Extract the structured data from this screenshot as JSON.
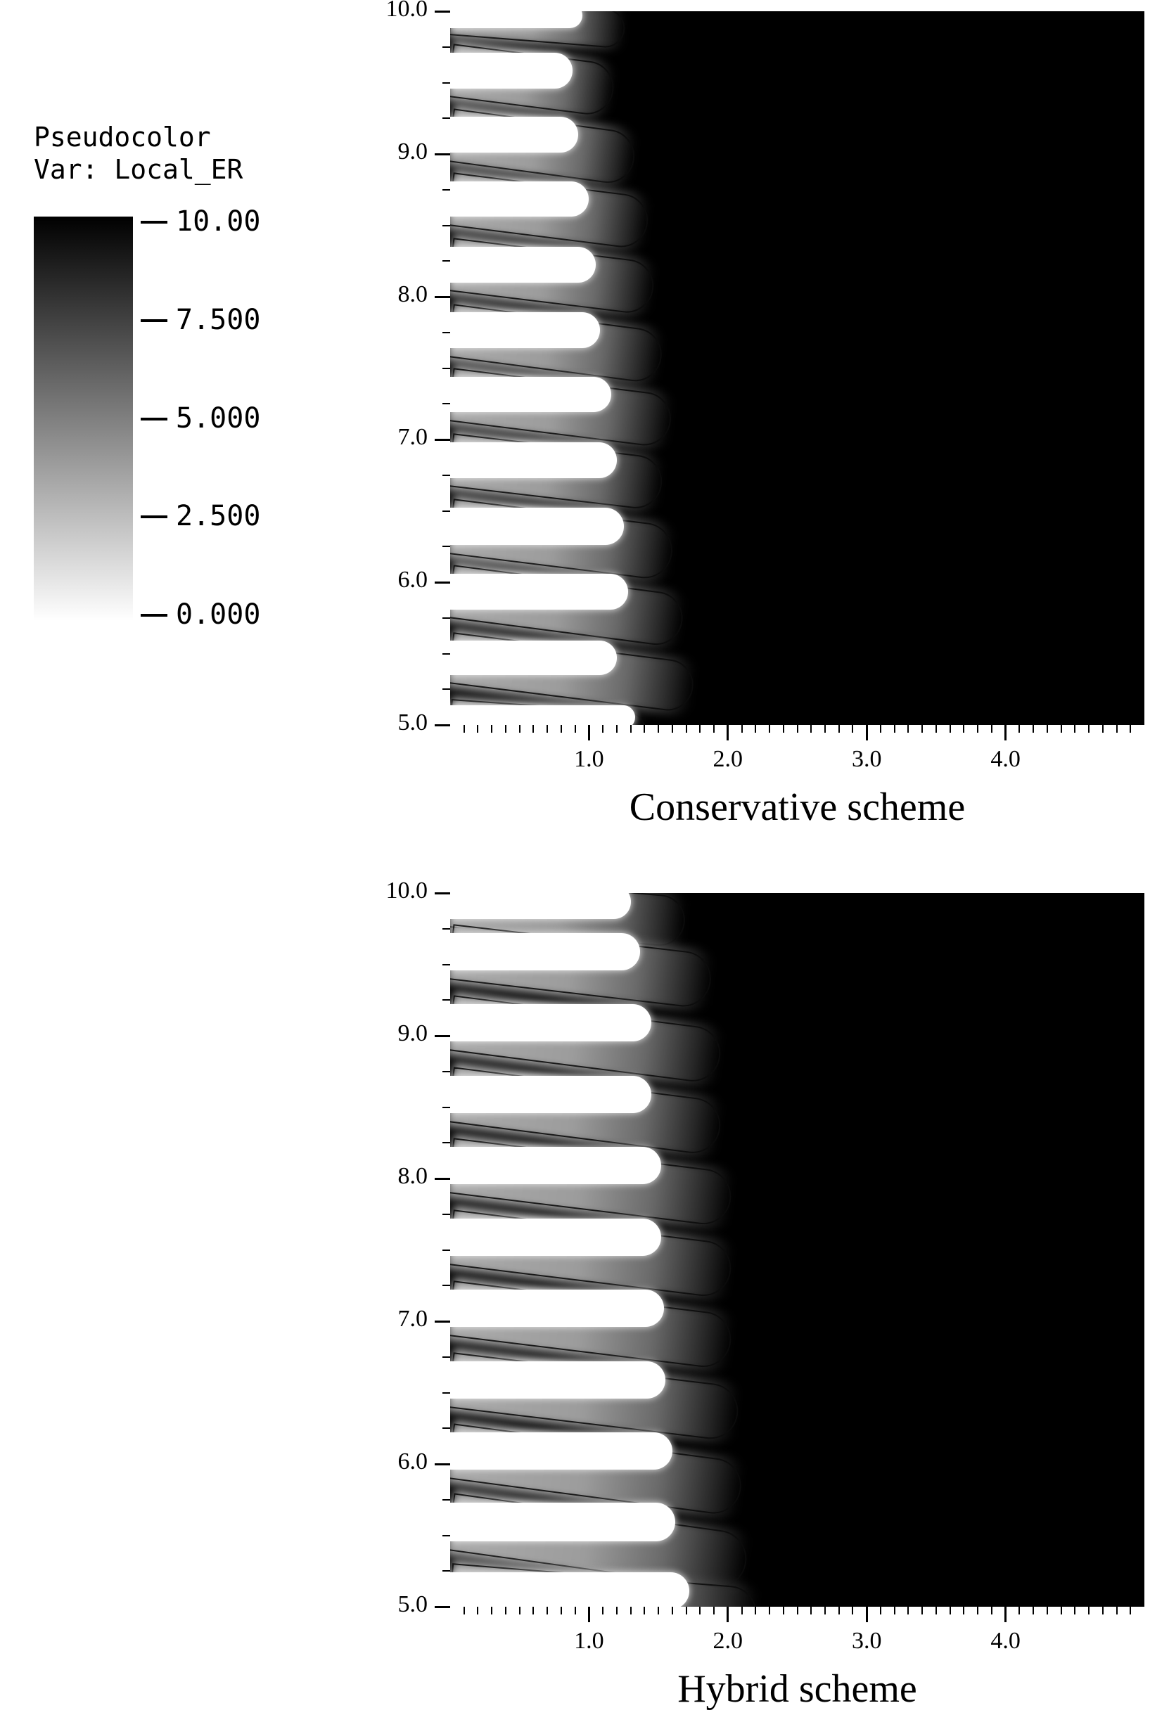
{
  "legend": {
    "title": "Pseudocolor",
    "var_label": "Var: Local_ER",
    "ticks": [
      "10.00",
      "7.500",
      "5.000",
      "2.500",
      "0.000"
    ],
    "gradient_top": "#000000",
    "gradient_bottom": "#ffffff"
  },
  "chart_data": [
    {
      "type": "heatmap",
      "title": "Conservative scheme",
      "variable": "Local_ER",
      "colormap": {
        "min": 0.0,
        "max": 10.0,
        "min_color": "#ffffff",
        "max_color": "#000000",
        "background_value": 10.0
      },
      "xlim": [
        0,
        5
      ],
      "ylim": [
        5,
        10
      ],
      "x_ticks": [
        1.0,
        2.0,
        3.0,
        4.0
      ],
      "x_tick_labels": [
        "1.0",
        "2.0",
        "3.0",
        "4.0"
      ],
      "x_minor_step": 0.1,
      "y_ticks": [
        5.0,
        6.0,
        7.0,
        8.0,
        9.0,
        10.0
      ],
      "y_tick_labels": [
        "5.0",
        "6.0",
        "7.0",
        "8.0",
        "9.0",
        "10.0"
      ],
      "y_minor_step": 0.25,
      "bands": [
        {
          "y0": 9.88,
          "y1": 10.06,
          "x_white": 0.95,
          "x_tail": 1.3,
          "drop": 0.1
        },
        {
          "y0": 9.46,
          "y1": 9.71,
          "x_white": 0.88,
          "x_tail": 1.22,
          "drop": 0.15
        },
        {
          "y0": 9.01,
          "y1": 9.26,
          "x_white": 0.92,
          "x_tail": 1.38,
          "drop": 0.18
        },
        {
          "y0": 8.56,
          "y1": 8.81,
          "x_white": 1.0,
          "x_tail": 1.48,
          "drop": 0.18
        },
        {
          "y0": 8.1,
          "y1": 8.35,
          "x_white": 1.05,
          "x_tail": 1.52,
          "drop": 0.18
        },
        {
          "y0": 7.64,
          "y1": 7.89,
          "x_white": 1.08,
          "x_tail": 1.58,
          "drop": 0.2
        },
        {
          "y0": 7.19,
          "y1": 7.44,
          "x_white": 1.16,
          "x_tail": 1.65,
          "drop": 0.2
        },
        {
          "y0": 6.73,
          "y1": 6.98,
          "x_white": 1.2,
          "x_tail": 1.58,
          "drop": 0.18
        },
        {
          "y0": 6.26,
          "y1": 6.52,
          "x_white": 1.25,
          "x_tail": 1.66,
          "drop": 0.2
        },
        {
          "y0": 5.81,
          "y1": 6.06,
          "x_white": 1.28,
          "x_tail": 1.74,
          "drop": 0.22
        },
        {
          "y0": 5.35,
          "y1": 5.59,
          "x_white": 1.2,
          "x_tail": 1.82,
          "drop": 0.22
        },
        {
          "y0": 4.97,
          "y1": 5.14,
          "x_white": 1.33,
          "x_tail": 1.45,
          "drop": 0.1
        }
      ]
    },
    {
      "type": "heatmap",
      "title": "Hybrid scheme",
      "variable": "Local_ER",
      "colormap": {
        "min": 0.0,
        "max": 10.0,
        "min_color": "#ffffff",
        "max_color": "#000000",
        "background_value": 10.0
      },
      "xlim": [
        0,
        5
      ],
      "ylim": [
        5,
        10
      ],
      "x_ticks": [
        1.0,
        2.0,
        3.0,
        4.0
      ],
      "x_tick_labels": [
        "1.0",
        "2.0",
        "3.0",
        "4.0"
      ],
      "x_minor_step": 0.1,
      "y_ticks": [
        5.0,
        6.0,
        7.0,
        8.0,
        9.0,
        10.0
      ],
      "y_tick_labels": [
        "5.0",
        "6.0",
        "7.0",
        "8.0",
        "9.0",
        "10.0"
      ],
      "y_minor_step": 0.25,
      "bands": [
        {
          "y0": 9.82,
          "y1": 10.06,
          "x_white": 1.3,
          "x_tail": 1.75,
          "drop": 0.15
        },
        {
          "y0": 9.46,
          "y1": 9.72,
          "x_white": 1.37,
          "x_tail": 1.95,
          "drop": 0.22
        },
        {
          "y0": 8.96,
          "y1": 9.22,
          "x_white": 1.45,
          "x_tail": 2.02,
          "drop": 0.25
        },
        {
          "y0": 8.46,
          "y1": 8.72,
          "x_white": 1.45,
          "x_tail": 2.02,
          "drop": 0.25
        },
        {
          "y0": 7.96,
          "y1": 8.22,
          "x_white": 1.52,
          "x_tail": 2.1,
          "drop": 0.25
        },
        {
          "y0": 7.46,
          "y1": 7.72,
          "x_white": 1.52,
          "x_tail": 2.1,
          "drop": 0.25
        },
        {
          "y0": 6.96,
          "y1": 7.22,
          "x_white": 1.54,
          "x_tail": 2.1,
          "drop": 0.25
        },
        {
          "y0": 6.46,
          "y1": 6.72,
          "x_white": 1.55,
          "x_tail": 2.15,
          "drop": 0.25
        },
        {
          "y0": 5.96,
          "y1": 6.22,
          "x_white": 1.6,
          "x_tail": 2.18,
          "drop": 0.28
        },
        {
          "y0": 5.46,
          "y1": 5.73,
          "x_white": 1.62,
          "x_tail": 2.22,
          "drop": 0.3
        },
        {
          "y0": 4.98,
          "y1": 5.24,
          "x_white": 1.72,
          "x_tail": 2.28,
          "drop": 0.18
        }
      ]
    }
  ]
}
